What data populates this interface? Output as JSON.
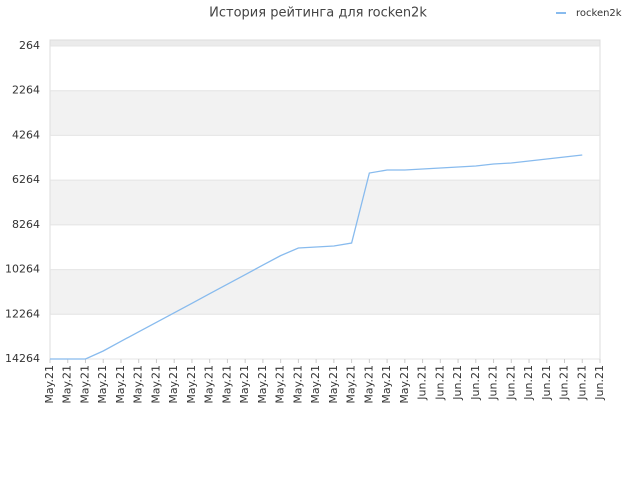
{
  "chart_data": {
    "type": "line",
    "title": "История рейтинга для rocken2k",
    "categories": [
      "May.21",
      "May.21",
      "May.21",
      "May.21",
      "May.21",
      "May.21",
      "May.21",
      "May.21",
      "May.21",
      "May.21",
      "May.21",
      "May.21",
      "May.21",
      "May.21",
      "May.21",
      "May.21",
      "May.21",
      "May.21",
      "May.21",
      "May.21",
      "May.21",
      "Jun.21",
      "Jun.21",
      "Jun.21",
      "Jun.21",
      "Jun.21",
      "Jun.21",
      "Jun.21",
      "Jun.21",
      "Jun.21",
      "Jun.21",
      "Jun.21"
    ],
    "series": [
      {
        "name": "rocken2k",
        "color": "#88bbee",
        "values": [
          14264,
          14264,
          14264,
          13906,
          13473,
          13048,
          12623,
          12198,
          11773,
          11344,
          10919,
          10494,
          10064,
          9640,
          9300,
          9255,
          9210,
          9076,
          5945,
          5810,
          5810,
          5766,
          5721,
          5676,
          5632,
          5542,
          5497,
          5408,
          5318,
          5229,
          5140,
          null
        ]
      }
    ],
    "ylim": [
      264,
      14264
    ],
    "y_inverted": true,
    "yticks": [
      264,
      2264,
      4264,
      6264,
      8264,
      10264,
      12264,
      14264
    ],
    "grid": true,
    "legend": "top-right"
  }
}
